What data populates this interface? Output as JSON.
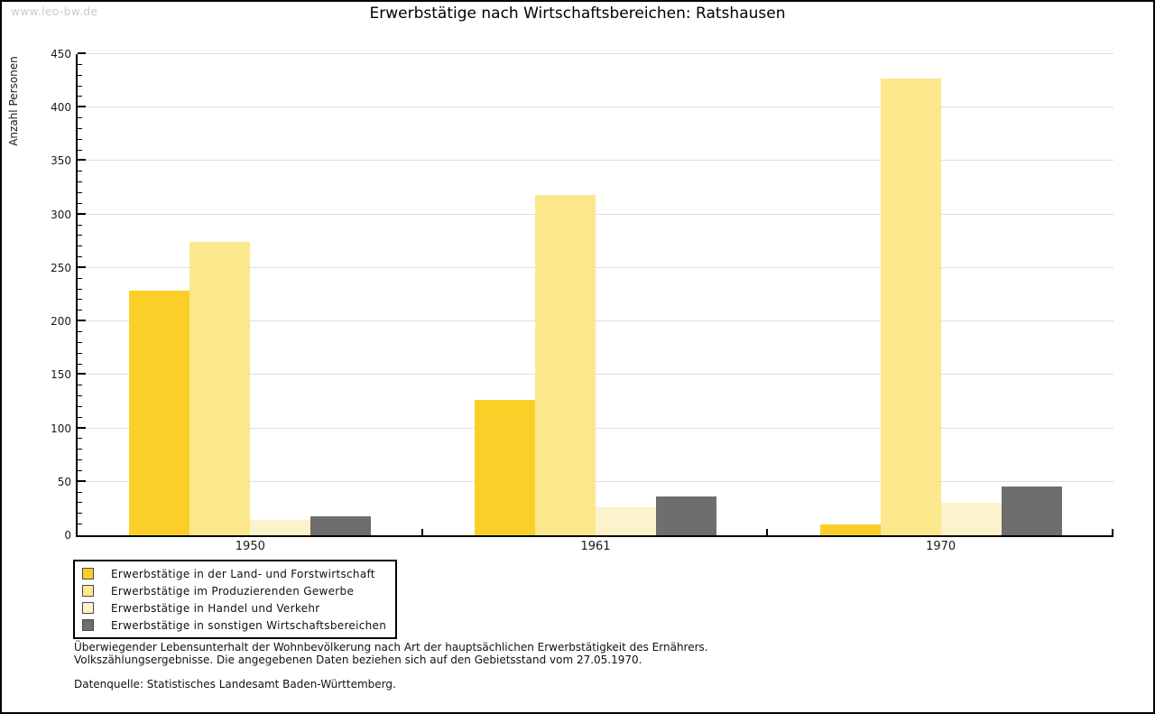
{
  "watermark": "www.leo-bw.de",
  "title": "Erwerbstätige nach Wirtschaftsbereichen: Ratshausen",
  "chart_data": {
    "type": "bar",
    "title": "Erwerbstätige nach Wirtschaftsbereichen: Ratshausen",
    "ylabel": "Anzahl Personen",
    "xlabel": "",
    "ylim": [
      0,
      450
    ],
    "y_major_step": 50,
    "y_minor_step": 10,
    "grid": true,
    "legend_position": "bottom-left",
    "categories": [
      "1950",
      "1961",
      "1970"
    ],
    "series": [
      {
        "name": "Erwerbstätige in der Land- und Forstwirtschaft",
        "color": "#fccf28",
        "values": [
          229,
          127,
          10
        ]
      },
      {
        "name": "Erwerbstätige im Produzierenden Gewerbe",
        "color": "#fbe88d",
        "values": [
          274,
          318,
          427
        ]
      },
      {
        "name": "Erwerbstätige in Handel und Verkehr",
        "color": "#fcf2cb",
        "values": [
          14,
          26,
          30
        ]
      },
      {
        "name": "Erwerbstätige in sonstigen Wirtschaftsbereichen",
        "color": "#6e6e6e",
        "values": [
          18,
          36,
          46
        ]
      }
    ]
  },
  "footnote": {
    "line1": "Überwiegender Lebensunterhalt der Wohnbevölkerung nach Art der hauptsächlichen Erwerbstätigkeit des Ernährers.",
    "line2": "Volkszählungsergebnisse. Die angegebenen Daten beziehen sich auf den Gebietsstand vom 27.05.1970.",
    "source": "Datenquelle: Statistisches Landesamt Baden-Württemberg."
  }
}
